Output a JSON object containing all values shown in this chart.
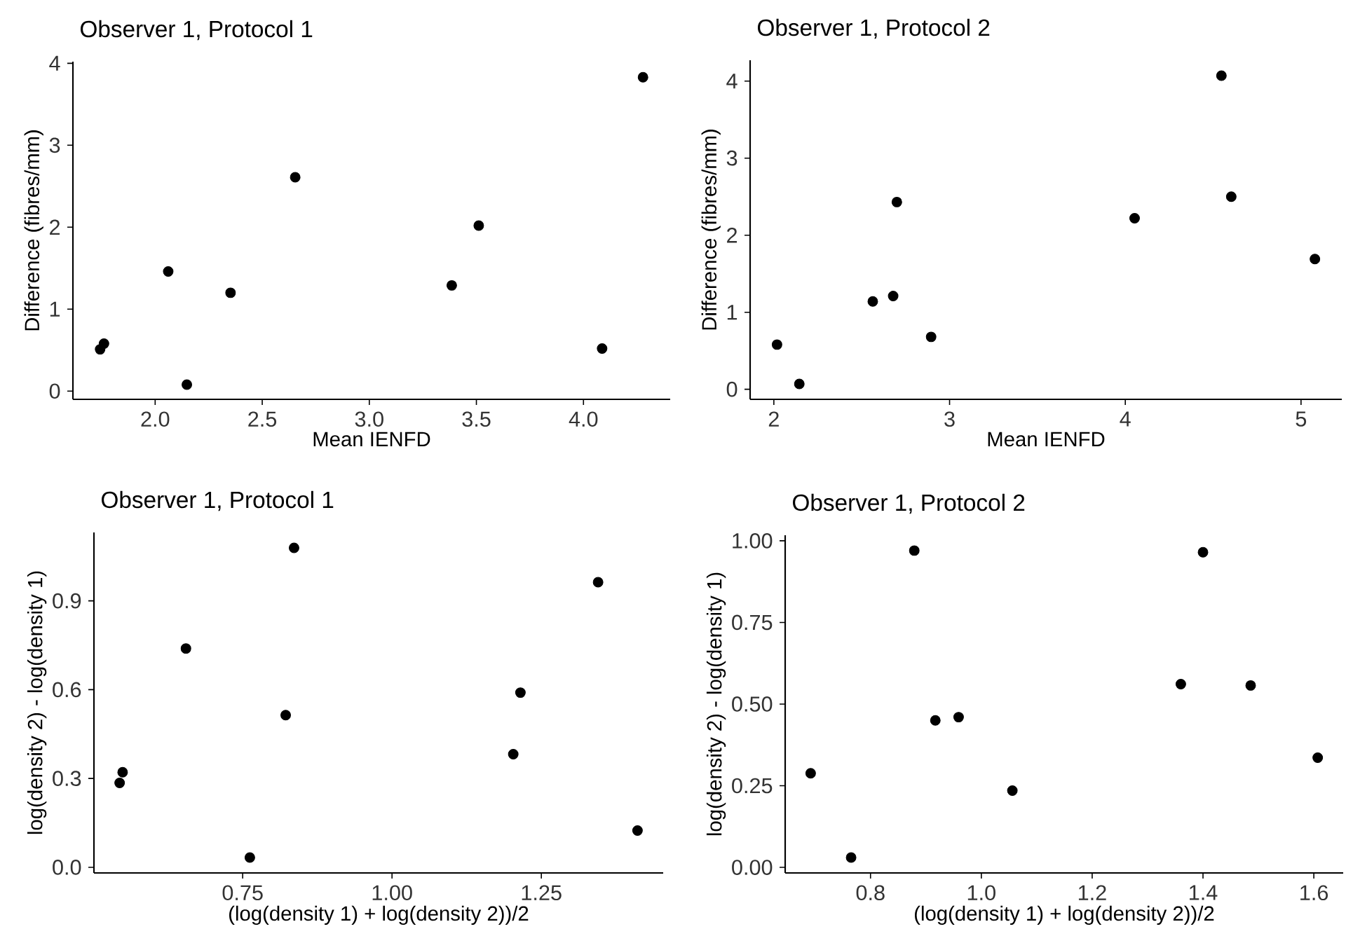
{
  "chart_data": [
    {
      "type": "scatter",
      "title": "Observer 1, Protocol 1",
      "xlabel": "Mean IENFD",
      "ylabel": "Difference (fibres/mm)",
      "color": "#000000",
      "x": [
        1.743,
        1.761,
        2.148,
        2.061,
        2.352,
        2.654,
        3.385,
        3.511,
        4.087,
        4.278
      ],
      "values": [
        0.51,
        0.58,
        0.08,
        1.46,
        1.2,
        2.61,
        1.29,
        2.02,
        0.52,
        3.83
      ],
      "xlim": [
        1.616,
        4.405
      ],
      "ylim": [
        -0.1,
        4.02
      ],
      "xticks": [
        {
          "value": 2,
          "label": "2.0"
        },
        {
          "value": 2.5,
          "label": "2.5"
        },
        {
          "value": 3,
          "label": "3.0"
        },
        {
          "value": 3.5,
          "label": "3.5"
        },
        {
          "value": 4,
          "label": "4.0"
        }
      ],
      "yticks": [
        0,
        1,
        2,
        3,
        4
      ]
    },
    {
      "type": "scatter",
      "title": "Observer 1, Protocol 2",
      "xlabel": "Mean IENFD",
      "ylabel": "Difference (fibres/mm)",
      "color": "#000000",
      "x": [
        2.018,
        2.145,
        2.563,
        2.679,
        2.7,
        2.895,
        4.053,
        4.547,
        4.603,
        5.079
      ],
      "values": [
        0.58,
        0.07,
        1.14,
        1.21,
        2.43,
        0.68,
        2.22,
        4.07,
        2.5,
        1.69
      ],
      "xlim": [
        1.865,
        5.232
      ],
      "ylim": [
        -0.13,
        4.27
      ],
      "xticks": [
        2,
        3,
        4,
        5
      ],
      "yticks": [
        0,
        1,
        2,
        3,
        4
      ]
    },
    {
      "type": "scatter",
      "title": "Observer 1, Protocol 1",
      "xlabel": "(log(density 1) + log(density 2))/2",
      "ylabel": "log(density 2) - log(density 1)",
      "color": "#000000",
      "x": [
        0.544,
        0.549,
        0.655,
        0.762,
        0.822,
        0.836,
        1.203,
        1.215,
        1.345,
        1.411
      ],
      "values": [
        0.285,
        0.321,
        0.739,
        0.033,
        0.514,
        1.079,
        0.382,
        0.59,
        0.963,
        0.124
      ],
      "xlim": [
        0.501,
        1.454
      ],
      "ylim": [
        -0.019,
        1.131
      ],
      "xticks": [
        0.75,
        {
          "value": 1,
          "label": "1.00"
        },
        1.25
      ],
      "yticks": [
        {
          "value": 0,
          "label": "0.0"
        },
        0.3,
        0.6,
        0.9
      ]
    },
    {
      "type": "scatter",
      "title": "Observer 1, Protocol 2",
      "xlabel": "(log(density 1) + log(density 2))/2",
      "ylabel": "log(density 2) - log(density 1)",
      "color": "#000000",
      "x": [
        0.692,
        0.765,
        0.879,
        0.917,
        0.959,
        1.056,
        1.36,
        1.4,
        1.486,
        1.607
      ],
      "values": [
        0.288,
        0.03,
        0.97,
        0.45,
        0.46,
        0.235,
        0.561,
        0.965,
        0.557,
        0.336
      ],
      "xlim": [
        0.646,
        1.653
      ],
      "ylim": [
        -0.017,
        1.017
      ],
      "xticks": [
        0.8,
        {
          "value": 1,
          "label": "1.0"
        },
        1.2,
        1.4,
        1.6
      ],
      "yticks": [
        {
          "value": 0,
          "label": "0.00"
        },
        0.25,
        {
          "value": 0.5,
          "label": "0.50"
        },
        0.75,
        {
          "value": 1,
          "label": "1.00"
        }
      ]
    }
  ]
}
